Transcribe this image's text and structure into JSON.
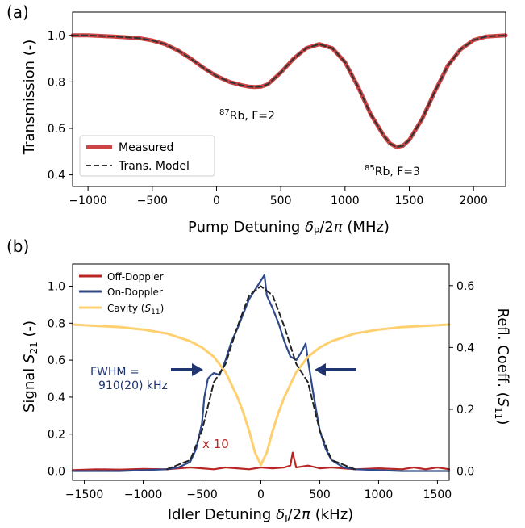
{
  "chart_data": [
    {
      "id": "a",
      "type": "line",
      "panel_label": "(a)",
      "xlabel": "Pump Detuning δP/2π (MHz)",
      "ylabel": "Transmission (-)",
      "xlim": [
        -1120,
        2250
      ],
      "ylim": [
        0.35,
        1.1
      ],
      "xticks": [
        -1000,
        -500,
        0,
        500,
        1000,
        1500,
        2000
      ],
      "yticks": [
        0.4,
        0.6,
        0.8,
        1.0
      ],
      "xtick_labels": [
        "−1000",
        "−500",
        "0",
        "500",
        "1000",
        "1500",
        "2000"
      ],
      "ytick_labels": [
        "0.4",
        "0.6",
        "0.8",
        "1.0"
      ],
      "grid": false,
      "legend_position": "lower-left",
      "series": [
        {
          "name": "Measured",
          "color": "#cc4444",
          "style": "solid-thick",
          "x": [
            -1120,
            -1000,
            -800,
            -600,
            -500,
            -400,
            -300,
            -200,
            -100,
            0,
            100,
            200,
            250,
            300,
            350,
            400,
            500,
            600,
            700,
            800,
            900,
            1000,
            1100,
            1200,
            1300,
            1350,
            1400,
            1450,
            1500,
            1600,
            1700,
            1800,
            1900,
            2000,
            2100,
            2250
          ],
          "y": [
            1.0,
            1.0,
            0.995,
            0.988,
            0.978,
            0.962,
            0.935,
            0.9,
            0.86,
            0.825,
            0.8,
            0.785,
            0.78,
            0.778,
            0.78,
            0.79,
            0.84,
            0.9,
            0.945,
            0.962,
            0.945,
            0.885,
            0.78,
            0.66,
            0.57,
            0.535,
            0.52,
            0.525,
            0.55,
            0.64,
            0.76,
            0.87,
            0.94,
            0.98,
            0.995,
            1.0
          ]
        },
        {
          "name": "Trans. Model",
          "color": "#333333",
          "style": "dashed",
          "x": [
            -1120,
            -1000,
            -800,
            -600,
            -500,
            -400,
            -300,
            -200,
            -100,
            0,
            100,
            200,
            250,
            300,
            350,
            400,
            500,
            600,
            700,
            800,
            900,
            1000,
            1100,
            1200,
            1300,
            1350,
            1400,
            1450,
            1500,
            1600,
            1700,
            1800,
            1900,
            2000,
            2100,
            2250
          ],
          "y": [
            1.0,
            1.0,
            0.995,
            0.988,
            0.978,
            0.962,
            0.935,
            0.9,
            0.86,
            0.825,
            0.8,
            0.785,
            0.78,
            0.778,
            0.78,
            0.79,
            0.84,
            0.9,
            0.945,
            0.962,
            0.945,
            0.885,
            0.78,
            0.66,
            0.57,
            0.535,
            0.52,
            0.525,
            0.55,
            0.64,
            0.76,
            0.87,
            0.94,
            0.98,
            0.995,
            1.0
          ]
        }
      ],
      "annotations": [
        {
          "sup": "87",
          "text": "Rb, F=2",
          "x": 0,
          "y": 0.7
        },
        {
          "sup": "85",
          "text": "Rb, F=3",
          "x": 1160,
          "y": 0.42
        }
      ]
    },
    {
      "id": "b",
      "type": "line",
      "panel_label": "(b)",
      "xlabel": "Idler Detuning δI/2π (kHz)",
      "ylabel": "Signal S21 (-)",
      "ylabel_right": "Refl. Coeff. (S11)",
      "xlim": [
        -1600,
        1600
      ],
      "ylim": [
        -0.05,
        1.12
      ],
      "ylim_right": [
        -0.03,
        0.67
      ],
      "xticks": [
        -1500,
        -1000,
        -500,
        0,
        500,
        1000,
        1500
      ],
      "yticks": [
        0.0,
        0.2,
        0.4,
        0.6,
        0.8,
        1.0
      ],
      "yticks_right": [
        0.0,
        0.2,
        0.4,
        0.6
      ],
      "xtick_labels": [
        "−1500",
        "−1000",
        "−500",
        "0",
        "500",
        "1000",
        "1500"
      ],
      "ytick_labels": [
        "0.0",
        "0.2",
        "0.4",
        "0.6",
        "0.8",
        "1.0"
      ],
      "ytick_labels_right": [
        "0.0",
        "0.2",
        "0.4",
        "0.6"
      ],
      "grid": false,
      "legend_position": "upper-left",
      "series": [
        {
          "name": "Off-Doppler",
          "axis": "left",
          "color": "#b82525",
          "x": [
            -1600,
            -1400,
            -1200,
            -1000,
            -800,
            -600,
            -500,
            -400,
            -300,
            -200,
            -100,
            0,
            100,
            200,
            250,
            270,
            300,
            400,
            500,
            600,
            800,
            1000,
            1200,
            1300,
            1400,
            1500,
            1600
          ],
          "y": [
            0.005,
            0.01,
            0.008,
            0.012,
            0.01,
            0.02,
            0.015,
            0.01,
            0.02,
            0.015,
            0.01,
            0.02,
            0.015,
            0.02,
            0.03,
            0.1,
            0.02,
            0.03,
            0.015,
            0.02,
            0.01,
            0.015,
            0.01,
            0.02,
            0.01,
            0.02,
            0.01
          ]
        },
        {
          "name": "On-Doppler",
          "axis": "left",
          "color": "#2f4a8a",
          "x": [
            -1600,
            -1200,
            -800,
            -700,
            -600,
            -550,
            -500,
            -480,
            -450,
            -420,
            -400,
            -350,
            -300,
            -250,
            -200,
            -150,
            -100,
            -50,
            0,
            30,
            50,
            100,
            150,
            200,
            250,
            300,
            350,
            380,
            400,
            450,
            500,
            550,
            600,
            700,
            800,
            1200,
            1600
          ],
          "y": [
            0.0,
            0.0,
            0.01,
            0.02,
            0.05,
            0.12,
            0.26,
            0.4,
            0.5,
            0.52,
            0.53,
            0.52,
            0.6,
            0.7,
            0.77,
            0.85,
            0.93,
            0.98,
            1.03,
            1.06,
            0.95,
            0.88,
            0.8,
            0.7,
            0.62,
            0.6,
            0.65,
            0.69,
            0.6,
            0.4,
            0.22,
            0.12,
            0.06,
            0.02,
            0.01,
            0.0,
            0.0
          ]
        },
        {
          "name": "Cavity (S11)",
          "axis": "right",
          "color": "#ffd070",
          "x": [
            -1600,
            -1400,
            -1200,
            -1000,
            -800,
            -600,
            -500,
            -400,
            -300,
            -200,
            -150,
            -100,
            -50,
            0,
            50,
            100,
            150,
            200,
            300,
            400,
            500,
            600,
            800,
            1000,
            1200,
            1400,
            1600
          ],
          "y": [
            0.474,
            0.47,
            0.466,
            0.458,
            0.445,
            0.42,
            0.4,
            0.37,
            0.32,
            0.24,
            0.19,
            0.13,
            0.06,
            0.02,
            0.06,
            0.13,
            0.19,
            0.24,
            0.32,
            0.37,
            0.4,
            0.42,
            0.445,
            0.458,
            0.466,
            0.47,
            0.474
          ]
        },
        {
          "name": "",
          "axis": "left",
          "color": "#222222",
          "style": "dashed",
          "x": [
            -800,
            -600,
            -500,
            -400,
            -300,
            -200,
            -100,
            0,
            100,
            200,
            300,
            400,
            500,
            600,
            800
          ],
          "y": [
            0.01,
            0.06,
            0.22,
            0.48,
            0.58,
            0.78,
            0.95,
            1.0,
            0.95,
            0.78,
            0.58,
            0.48,
            0.22,
            0.06,
            0.01
          ]
        }
      ],
      "annotations": {
        "fwhm_line1": "FWHM =",
        "fwhm_line2": "910(20) kHz",
        "x10": "x 10"
      }
    }
  ]
}
